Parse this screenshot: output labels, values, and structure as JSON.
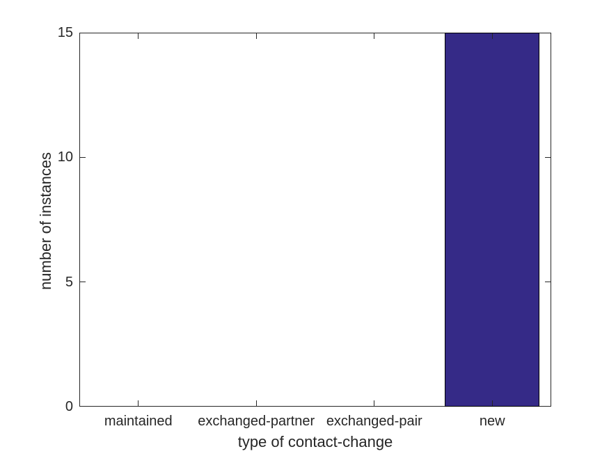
{
  "figure": {
    "background_color": "#ffffff"
  },
  "chart_data": {
    "type": "bar",
    "title": "",
    "categories": [
      "maintained",
      "exchanged-partner",
      "exchanged-pair",
      "new"
    ],
    "values": [
      0,
      0,
      0,
      15
    ],
    "xlabel": "type of contact-change",
    "ylabel": "number of instances",
    "ylim": [
      0,
      15
    ],
    "yticks": [
      0,
      5,
      10,
      15
    ],
    "ytick_labels": [
      "0",
      "5",
      "10",
      "15"
    ],
    "bar_width_fraction": 0.8,
    "grid": "off",
    "legend": "none",
    "box": "on",
    "tick_direction": "in",
    "bar_face_color": "#352a87",
    "bar_edge_color": "#000000",
    "axis_color": "#262626",
    "text_color": "#262626"
  }
}
